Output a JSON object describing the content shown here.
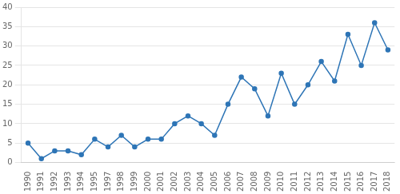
{
  "chart_data": {
    "type": "line",
    "categories": [
      "1990",
      "1991",
      "1992",
      "1993",
      "1994",
      "1995",
      "1997",
      "1998",
      "1999",
      "2000",
      "2001",
      "2002",
      "2003",
      "2004",
      "2005",
      "2006",
      "2007",
      "2008",
      "2009",
      "2010",
      "2011",
      "2012",
      "2013",
      "2014",
      "2015",
      "2016",
      "2017",
      "2018"
    ],
    "values": [
      5,
      1,
      3,
      3,
      2,
      6,
      4,
      7,
      4,
      6,
      6,
      10,
      12,
      10,
      7,
      15,
      22,
      19,
      12,
      23,
      15,
      20,
      26,
      21,
      33,
      25,
      36,
      29
    ],
    "color": "#2E75B6",
    "marker": "circle",
    "ylim": [
      0,
      40
    ],
    "yticks": [
      0,
      5,
      10,
      15,
      20,
      25,
      30,
      35,
      40
    ],
    "grid": true
  }
}
